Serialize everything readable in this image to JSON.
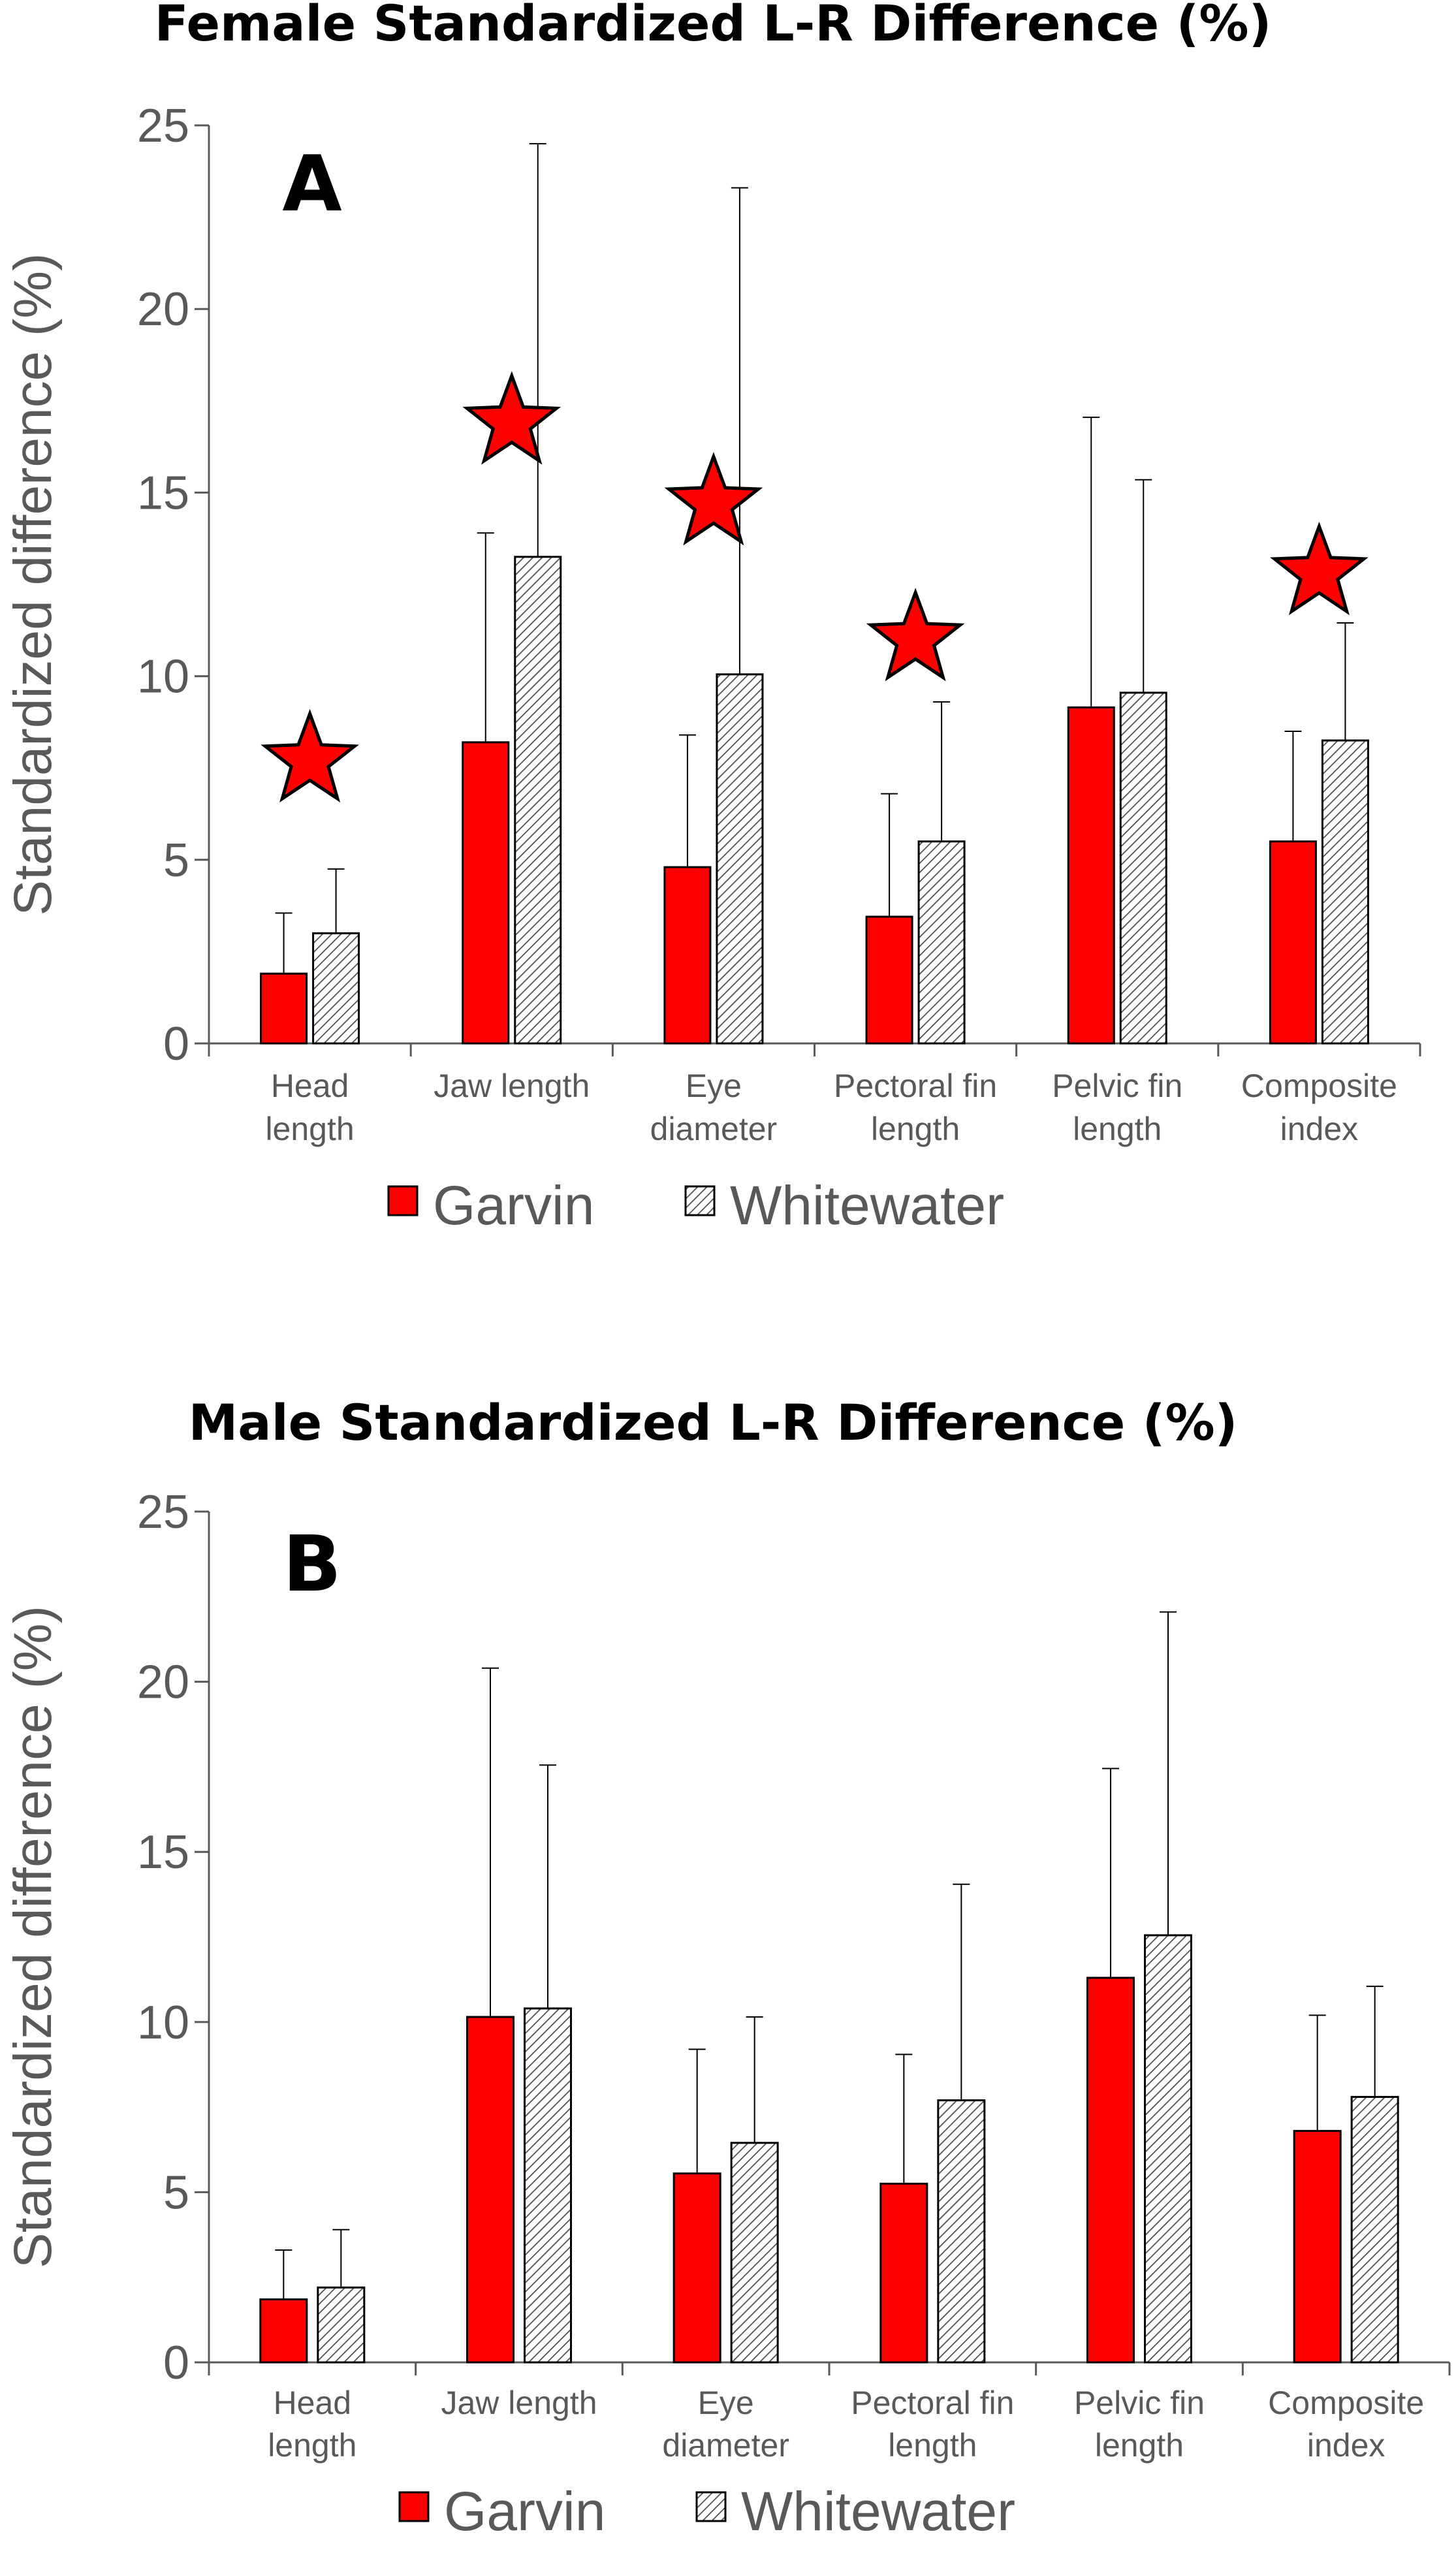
{
  "chart_data": [
    {
      "type": "bar",
      "title": "Female Standardized L-R Difference (%)",
      "panel_label": "A",
      "ylabel": "Standardized difference (%)",
      "xlabel": "",
      "ylim": [
        0,
        25
      ],
      "yticks": [
        0,
        5,
        10,
        15,
        20,
        25
      ],
      "categories": [
        [
          "Head",
          "length"
        ],
        [
          "Jaw length"
        ],
        [
          "Eye",
          "diameter"
        ],
        [
          "Pectoral fin",
          "length"
        ],
        [
          "Pelvic fin",
          "length"
        ],
        [
          "Composite",
          "index"
        ]
      ],
      "series": [
        {
          "name": "Garvin",
          "values": [
            1.9,
            8.2,
            4.8,
            3.45,
            9.15,
            5.5
          ],
          "error_upper": [
            3.55,
            13.9,
            8.4,
            6.8,
            17.05,
            8.5
          ]
        },
        {
          "name": "Whitewater",
          "values": [
            3.0,
            13.25,
            10.05,
            5.5,
            9.55,
            8.25
          ],
          "error_upper": [
            4.75,
            24.5,
            23.3,
            9.3,
            15.35,
            11.45
          ]
        }
      ],
      "significance_stars": [
        7.7,
        16.9,
        14.7,
        11.0,
        null,
        12.8
      ],
      "legend": "bottom"
    },
    {
      "type": "bar",
      "title": "Male Standardized L-R Difference (%)",
      "panel_label": "B",
      "ylabel": "Standardized difference (%)",
      "xlabel": "",
      "ylim": [
        0,
        25
      ],
      "yticks": [
        0,
        5,
        10,
        15,
        20,
        25
      ],
      "categories": [
        [
          "Head",
          "length"
        ],
        [
          "Jaw length"
        ],
        [
          "Eye",
          "diameter"
        ],
        [
          "Pectoral fin",
          "length"
        ],
        [
          "Pelvic fin",
          "length"
        ],
        [
          "Composite",
          "index"
        ]
      ],
      "series": [
        {
          "name": "Garvin",
          "values": [
            1.85,
            10.15,
            5.55,
            5.25,
            11.3,
            6.8
          ],
          "error_upper": [
            3.3,
            20.4,
            9.2,
            9.05,
            17.45,
            10.2
          ]
        },
        {
          "name": "Whitewater",
          "values": [
            2.2,
            10.4,
            6.45,
            7.7,
            12.55,
            7.8
          ],
          "error_upper": [
            3.9,
            17.55,
            10.15,
            14.05,
            22.05,
            11.05
          ]
        }
      ],
      "significance_stars": [
        null,
        null,
        null,
        null,
        null,
        null
      ],
      "legend": "bottom"
    }
  ],
  "colors": {
    "garvin": "#ff0000",
    "whitewater_hatch": "#4d4d4d",
    "axis": "#595959",
    "outline": "#000000"
  }
}
